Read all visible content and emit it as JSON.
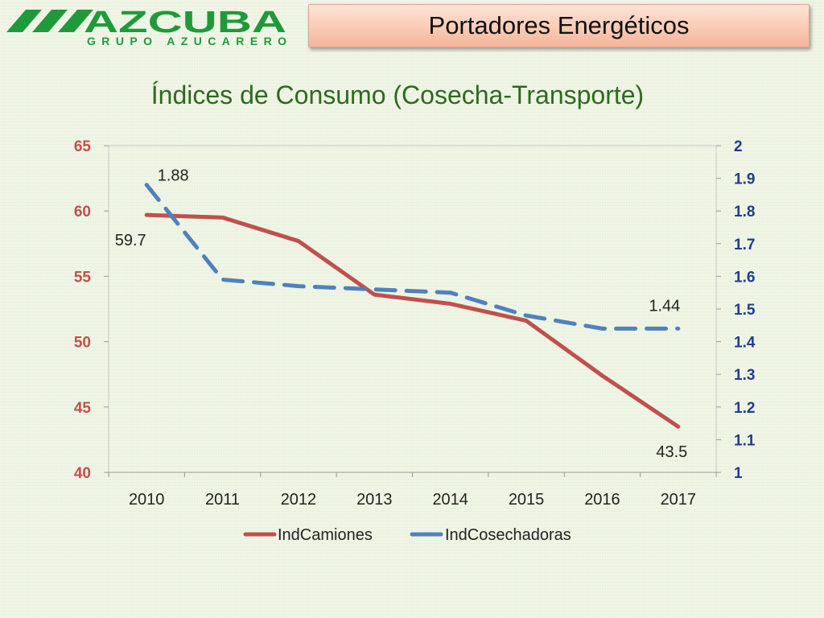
{
  "logo": {
    "brand": "AZCUBA",
    "subtitle": "GRUPO AZUCARERO",
    "color": "#1f9a3a"
  },
  "header": {
    "title": "Portadores Energéticos"
  },
  "chart_data": {
    "type": "line",
    "title": "Índices de Consumo (Cosecha-Transporte)",
    "categories": [
      "2010",
      "2011",
      "2012",
      "2013",
      "2014",
      "2015",
      "2016",
      "2017"
    ],
    "y_left": {
      "min": 40,
      "max": 65,
      "ticks": [
        "40",
        "45",
        "50",
        "55",
        "60",
        "65"
      ],
      "color": "#c0504d"
    },
    "y_right": {
      "min": 1,
      "max": 2,
      "ticks": [
        "1",
        "1.1",
        "1.2",
        "1.3",
        "1.4",
        "1.5",
        "1.6",
        "1.7",
        "1.8",
        "1.9",
        "2"
      ],
      "color": "#1f3d8a"
    },
    "series": [
      {
        "name": "IndCamiones",
        "axis": "left",
        "color": "#c0504d",
        "style": "solid",
        "values": [
          59.7,
          59.5,
          57.7,
          53.6,
          52.9,
          51.6,
          47.4,
          43.5
        ],
        "labels": [
          {
            "index": 0,
            "text": "59.7"
          },
          {
            "index": 7,
            "text": "43.5"
          }
        ]
      },
      {
        "name": "IndCosechadoras",
        "axis": "right",
        "color": "#4f81bd",
        "style": "dashed",
        "values": [
          1.88,
          1.59,
          1.57,
          1.56,
          1.55,
          1.48,
          1.44,
          1.44
        ],
        "labels": [
          {
            "index": 0,
            "text": "1.88"
          },
          {
            "index": 7,
            "text": "1.44"
          }
        ]
      }
    ],
    "grid": false,
    "legend": "bottom"
  }
}
